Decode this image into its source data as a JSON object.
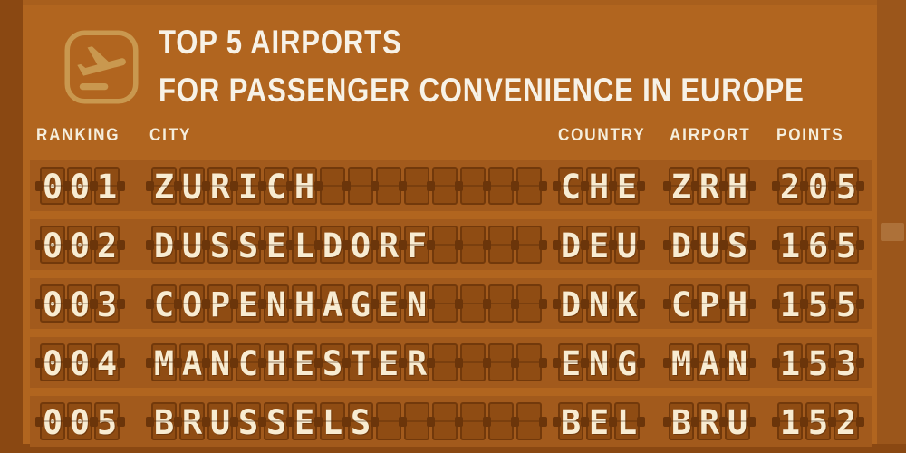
{
  "header": {
    "title_line1": "TOP 5 AIRPORTS",
    "title_line2": "FOR PASSENGER CONVENIENCE IN EUROPE",
    "icon": "airplane-takeoff-icon"
  },
  "columns": [
    {
      "key": "ranking",
      "label": "RANKING"
    },
    {
      "key": "city",
      "label": "CITY"
    },
    {
      "key": "country",
      "label": "COUNTRY"
    },
    {
      "key": "airport",
      "label": "AIRPORT"
    },
    {
      "key": "points",
      "label": "POINTS"
    }
  ],
  "rows": [
    {
      "ranking": "001",
      "city": "ZURICH",
      "country": "CHE",
      "airport": "ZRH",
      "points": "205"
    },
    {
      "ranking": "002",
      "city": "DUSSELDORF",
      "country": "DEU",
      "airport": "DUS",
      "points": "165"
    },
    {
      "ranking": "003",
      "city": "COPENHAGEN",
      "country": "DNK",
      "airport": "CPH",
      "points": "155"
    },
    {
      "ranking": "004",
      "city": "MANCHESTER",
      "country": "ENG",
      "airport": "MAN",
      "points": "153"
    },
    {
      "ranking": "005",
      "city": "BRUSSELS",
      "country": "BEL",
      "airport": "BRU",
      "points": "152"
    }
  ],
  "colors": {
    "background": "#b1651f",
    "frame_dark": "#8a4812",
    "frame_right": "#9b561b",
    "row_strip": "#a25a1c",
    "flap_fill": "#8f4c13",
    "flap_border": "#72390b",
    "hinge": "#6b350a",
    "flap_text": "#f8ecd2",
    "heading_text": "#f5eedd",
    "title_text": "#f7f2e7",
    "icon": "#c9984f"
  },
  "chart_data": {
    "type": "table",
    "title": "TOP 5 AIRPORTS FOR PASSENGER CONVENIENCE IN EUROPE",
    "columns": [
      "RANKING",
      "CITY",
      "COUNTRY",
      "AIRPORT",
      "POINTS"
    ],
    "rows": [
      [
        "001",
        "ZURICH",
        "CHE",
        "ZRH",
        205
      ],
      [
        "002",
        "DUSSELDORF",
        "DEU",
        "DUS",
        165
      ],
      [
        "003",
        "COPENHAGEN",
        "DNK",
        "CPH",
        155
      ],
      [
        "004",
        "MANCHESTER",
        "ENG",
        "MAN",
        153
      ],
      [
        "005",
        "BRUSSELS",
        "BEL",
        "BRU",
        152
      ]
    ],
    "style": "split-flap departure board"
  }
}
